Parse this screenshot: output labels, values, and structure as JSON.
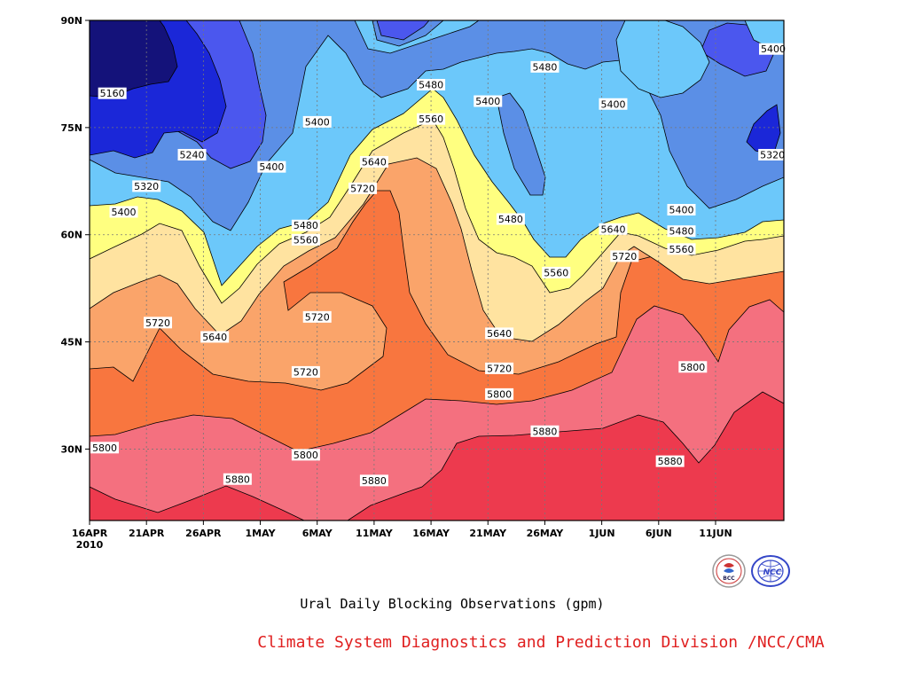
{
  "chart_data": {
    "type": "heatmap",
    "title": "Ural Daily Blocking Observations (gpm)",
    "credit": "Climate System Diagnostics and Prediction Division /NCC/CMA",
    "x_axis": {
      "ticks": [
        "16APR",
        "21APR",
        "26APR",
        "1MAY",
        "6MAY",
        "11MAY",
        "16MAY",
        "21MAY",
        "26MAY",
        "1JUN",
        "6JUN",
        "11JUN"
      ],
      "year_label": "2010",
      "range": [
        "2010-04-16",
        "2010-06-16"
      ]
    },
    "y_axis": {
      "ticks": [
        "30N",
        "45N",
        "60N",
        "75N",
        "90N"
      ],
      "range": [
        20,
        90
      ]
    },
    "contour_levels": [
      5160,
      5240,
      5320,
      5400,
      5480,
      5560,
      5640,
      5720,
      5800,
      5880
    ],
    "fill_colors": {
      "5160": "#14127a",
      "5240": "#1b27d8",
      "5320": "#4b57ee",
      "5400": "#5b8fe6",
      "5480": "#6cc8fa",
      "5560": "#ffff80",
      "5640": "#ffe3a0",
      "5720": "#faa46a",
      "5800": "#f8763f",
      "5880": "#f4707f",
      "5960": "#ed3a4e"
    },
    "contour_labels": [
      {
        "text": "5160",
        "date": "2010-04-18",
        "lat": 79.8
      },
      {
        "text": "5240",
        "date": "2010-04-25",
        "lat": 71.2
      },
      {
        "text": "5320",
        "date": "2010-04-21",
        "lat": 66.8
      },
      {
        "text": "5400",
        "date": "2010-04-19",
        "lat": 63.2
      },
      {
        "text": "5400",
        "date": "2010-05-06",
        "lat": 75.8
      },
      {
        "text": "5400",
        "date": "2010-05-02",
        "lat": 69.5
      },
      {
        "text": "5480",
        "date": "2010-05-05",
        "lat": 61.3
      },
      {
        "text": "5560",
        "date": "2010-05-05",
        "lat": 59.3
      },
      {
        "text": "5480",
        "date": "2010-05-16",
        "lat": 81.0
      },
      {
        "text": "5560",
        "date": "2010-05-16",
        "lat": 76.2
      },
      {
        "text": "5640",
        "date": "2010-05-11",
        "lat": 70.2
      },
      {
        "text": "5720",
        "date": "2010-05-10",
        "lat": 66.5
      },
      {
        "text": "5480",
        "date": "2010-05-26",
        "lat": 83.5
      },
      {
        "text": "5400",
        "date": "2010-05-21",
        "lat": 78.7
      },
      {
        "text": "5480",
        "date": "2010-05-23",
        "lat": 62.2
      },
      {
        "text": "5560",
        "date": "2010-05-27",
        "lat": 54.7
      },
      {
        "text": "5720",
        "date": "2010-04-22",
        "lat": 47.7
      },
      {
        "text": "5640",
        "date": "2010-04-27",
        "lat": 45.7
      },
      {
        "text": "5720",
        "date": "2010-05-06",
        "lat": 48.5
      },
      {
        "text": "5720",
        "date": "2010-05-05",
        "lat": 40.8
      },
      {
        "text": "5640",
        "date": "2010-05-22",
        "lat": 46.2
      },
      {
        "text": "5720",
        "date": "2010-05-22",
        "lat": 41.3
      },
      {
        "text": "5800",
        "date": "2010-05-22",
        "lat": 37.7
      },
      {
        "text": "5880",
        "date": "2010-05-26",
        "lat": 32.5
      },
      {
        "text": "5800",
        "date": "2010-04-16",
        "lat": 30.2
      },
      {
        "text": "5800",
        "date": "2010-05-05",
        "lat": 29.2
      },
      {
        "text": "5880",
        "date": "2010-04-29",
        "lat": 25.8
      },
      {
        "text": "5880",
        "date": "2010-05-11",
        "lat": 25.6
      },
      {
        "text": "5400",
        "date": "2010-06-01",
        "lat": 78.3
      },
      {
        "text": "5400",
        "date": "2010-06-16",
        "lat": 86.0
      },
      {
        "text": "5320",
        "date": "2010-06-15",
        "lat": 71.2
      },
      {
        "text": "5400",
        "date": "2010-06-07",
        "lat": 63.5
      },
      {
        "text": "5480",
        "date": "2010-06-07",
        "lat": 60.5
      },
      {
        "text": "5560",
        "date": "2010-06-07",
        "lat": 58.0
      },
      {
        "text": "5640",
        "date": "2010-06-01",
        "lat": 60.8
      },
      {
        "text": "5720",
        "date": "2010-06-02",
        "lat": 57.0
      },
      {
        "text": "5800",
        "date": "2010-06-08",
        "lat": 41.5
      },
      {
        "text": "5880",
        "date": "2010-06-06",
        "lat": 28.3
      }
    ],
    "grid": true
  }
}
